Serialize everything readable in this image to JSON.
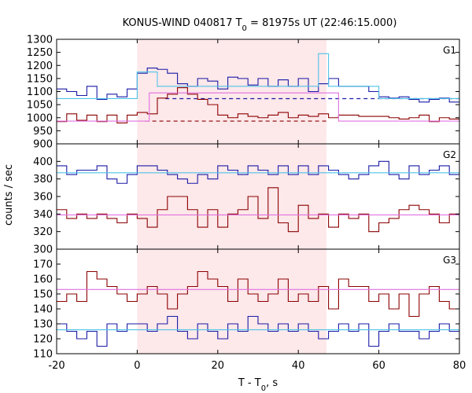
{
  "chart_data": {
    "type": "line",
    "title_prefix": "KONUS-WIND 040817 T",
    "title_sub": "0",
    "title_suffix": " = 81975s UT (22:46:15.000)",
    "xlabel_prefix": "T - T",
    "xlabel_sub": "0",
    "xlabel_suffix": ", s",
    "ylabel": "counts / sec",
    "xlim": [
      -20,
      80
    ],
    "xticks": [
      -20,
      0,
      20,
      40,
      60,
      80
    ],
    "highlight_interval": [
      0,
      47
    ],
    "colors": {
      "dark_red": "#8b0000",
      "dark_blue": "#1a1aa6",
      "cyan": "#4fc3e8",
      "pink": "#e070e0",
      "highlight": "#fde8ea",
      "dashed_blue": "#1a1aa6",
      "dashed_red": "#8b0000"
    },
    "panels": [
      {
        "label": "G1",
        "ylim": [
          900,
          1300
        ],
        "yticks": [
          900,
          950,
          1000,
          1050,
          1100,
          1150,
          1200,
          1250,
          1300
        ],
        "series": [
          {
            "color_key": "dark_red",
            "x": [
              -20,
              -17.5,
              -15,
              -12.5,
              -10,
              -7.5,
              -5,
              -2.5,
              0,
              2.5,
              5,
              7.5,
              10,
              12.5,
              15,
              17.5,
              20,
              22.5,
              25,
              27.5,
              30,
              32.5,
              35,
              37.5,
              40,
              42.5,
              45,
              47.5,
              50,
              52.5,
              55,
              57.5,
              60,
              62.5,
              65,
              67.5,
              70,
              72.5,
              75,
              77.5,
              80
            ],
            "y": [
              985,
              1015,
              990,
              1010,
              985,
              1010,
              980,
              1010,
              1020,
              1015,
              1075,
              1090,
              1115,
              1090,
              1070,
              1050,
              1010,
              1000,
              1015,
              1005,
              1000,
              1010,
              1020,
              1000,
              1010,
              1005,
              1015,
              1000,
              1010,
              1010,
              1005,
              1005,
              1005,
              1000,
              995,
              1000,
              1010,
              985,
              1000,
              995,
              985
            ]
          },
          {
            "color_key": "dark_blue",
            "x": [
              -20,
              -17.5,
              -15,
              -12.5,
              -10,
              -7.5,
              -5,
              -2.5,
              0,
              2.5,
              5,
              7.5,
              10,
              12.5,
              15,
              17.5,
              20,
              22.5,
              25,
              27.5,
              30,
              32.5,
              35,
              37.5,
              40,
              42.5,
              45,
              47.5,
              50,
              52.5,
              55,
              57.5,
              60,
              62.5,
              65,
              67.5,
              70,
              72.5,
              75,
              77.5,
              80
            ],
            "y": [
              1110,
              1100,
              1085,
              1120,
              1070,
              1090,
              1080,
              1110,
              1170,
              1190,
              1185,
              1170,
              1130,
              1120,
              1150,
              1140,
              1110,
              1155,
              1150,
              1125,
              1150,
              1120,
              1145,
              1120,
              1150,
              1100,
              1130,
              1150,
              1120,
              1120,
              1120,
              1100,
              1080,
              1075,
              1080,
              1070,
              1060,
              1070,
              1075,
              1060,
              1060
            ]
          },
          {
            "color_key": "cyan",
            "x": [
              -20,
              0,
              5,
              45,
              47.5,
              60,
              80
            ],
            "y": [
              1073,
              1175,
              1120,
              1245,
              1120,
              1073,
              1073
            ]
          },
          {
            "color_key": "pink",
            "x": [
              -20,
              3,
              7,
              47.5,
              50,
              80
            ],
            "y": [
              987,
              1095,
              1095,
              1095,
              987,
              987
            ]
          }
        ],
        "dashed": [
          {
            "color_key": "dashed_blue",
            "x": [
              7,
              80
            ],
            "y": 1073
          },
          {
            "color_key": "dashed_red",
            "x": [
              2,
              47
            ],
            "y": 987
          }
        ]
      },
      {
        "label": "G2",
        "ylim": [
          300,
          420
        ],
        "yticks": [
          300,
          320,
          340,
          360,
          380,
          400
        ],
        "series": [
          {
            "color_key": "dark_red",
            "x": [
              -20,
              -17.5,
              -15,
              -12.5,
              -10,
              -7.5,
              -5,
              -2.5,
              0,
              2.5,
              5,
              7.5,
              10,
              12.5,
              15,
              17.5,
              20,
              22.5,
              25,
              27.5,
              30,
              32.5,
              35,
              37.5,
              40,
              42.5,
              45,
              47.5,
              50,
              52.5,
              55,
              57.5,
              60,
              62.5,
              65,
              67.5,
              70,
              72.5,
              75,
              77.5,
              80
            ],
            "y": [
              345,
              335,
              340,
              335,
              340,
              335,
              330,
              340,
              335,
              325,
              345,
              360,
              360,
              345,
              325,
              345,
              325,
              340,
              345,
              360,
              335,
              370,
              330,
              320,
              350,
              335,
              340,
              325,
              340,
              335,
              340,
              320,
              330,
              335,
              345,
              350,
              345,
              340,
              330,
              340,
              340
            ]
          },
          {
            "color_key": "dark_blue",
            "x": [
              -20,
              -17.5,
              -15,
              -12.5,
              -10,
              -7.5,
              -5,
              -2.5,
              0,
              2.5,
              5,
              7.5,
              10,
              12.5,
              15,
              17.5,
              20,
              22.5,
              25,
              27.5,
              30,
              32.5,
              35,
              37.5,
              40,
              42.5,
              45,
              47.5,
              50,
              52.5,
              55,
              57.5,
              60,
              62.5,
              65,
              67.5,
              70,
              72.5,
              75,
              77.5,
              80
            ],
            "y": [
              395,
              385,
              390,
              390,
              395,
              380,
              375,
              385,
              395,
              395,
              390,
              385,
              380,
              375,
              385,
              380,
              395,
              390,
              385,
              395,
              390,
              385,
              395,
              385,
              395,
              385,
              395,
              390,
              385,
              380,
              385,
              395,
              400,
              385,
              380,
              395,
              385,
              390,
              395,
              385,
              390
            ]
          },
          {
            "color_key": "cyan",
            "x": [
              -20,
              80
            ],
            "y": [
              387,
              387
            ]
          },
          {
            "color_key": "pink",
            "x": [
              -20,
              80
            ],
            "y": [
              339,
              339
            ]
          }
        ],
        "dashed": []
      },
      {
        "label": "G3",
        "ylim": [
          110,
          180
        ],
        "yticks": [
          110,
          120,
          130,
          140,
          150,
          160,
          170
        ],
        "series": [
          {
            "color_key": "dark_red",
            "x": [
              -20,
              -17.5,
              -15,
              -12.5,
              -10,
              -7.5,
              -5,
              -2.5,
              0,
              2.5,
              5,
              7.5,
              10,
              12.5,
              15,
              17.5,
              20,
              22.5,
              25,
              27.5,
              30,
              32.5,
              35,
              37.5,
              40,
              42.5,
              45,
              47.5,
              50,
              52.5,
              55,
              57.5,
              60,
              62.5,
              65,
              67.5,
              70,
              72.5,
              75,
              77.5,
              80
            ],
            "y": [
              145,
              150,
              145,
              165,
              160,
              155,
              150,
              145,
              150,
              155,
              150,
              140,
              150,
              155,
              165,
              160,
              155,
              145,
              160,
              150,
              145,
              150,
              160,
              145,
              150,
              145,
              155,
              140,
              160,
              155,
              155,
              145,
              150,
              140,
              150,
              135,
              150,
              155,
              145,
              140,
              150
            ]
          },
          {
            "color_key": "dark_blue",
            "x": [
              -20,
              -17.5,
              -15,
              -12.5,
              -10,
              -7.5,
              -5,
              -2.5,
              0,
              2.5,
              5,
              7.5,
              10,
              12.5,
              15,
              17.5,
              20,
              22.5,
              25,
              27.5,
              30,
              32.5,
              35,
              37.5,
              40,
              42.5,
              45,
              47.5,
              50,
              52.5,
              55,
              57.5,
              60,
              62.5,
              65,
              67.5,
              70,
              72.5,
              75,
              77.5,
              80
            ],
            "y": [
              130,
              125,
              120,
              125,
              115,
              130,
              125,
              130,
              130,
              125,
              130,
              135,
              125,
              120,
              130,
              125,
              120,
              130,
              125,
              135,
              130,
              125,
              130,
              125,
              130,
              125,
              120,
              125,
              130,
              125,
              130,
              115,
              125,
              130,
              125,
              125,
              120,
              125,
              130,
              125,
              120
            ]
          },
          {
            "color_key": "cyan",
            "x": [
              -20,
              80
            ],
            "y": [
              126,
              126
            ]
          },
          {
            "color_key": "pink",
            "x": [
              -20,
              80
            ],
            "y": [
              153,
              153
            ]
          }
        ],
        "dashed": []
      }
    ]
  }
}
